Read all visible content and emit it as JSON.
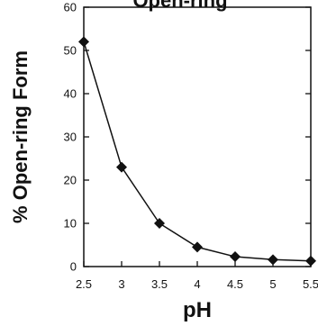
{
  "chart_data": {
    "type": "line",
    "title": "",
    "clipped_title_text": "Open-ring",
    "xlabel": "pH",
    "ylabel": "% Open-ring Form",
    "xlim": [
      2.5,
      5.5
    ],
    "ylim": [
      0,
      60
    ],
    "x_ticks": [
      2.5,
      3,
      3.5,
      4,
      4.5,
      5,
      5.5
    ],
    "x_tick_labels": [
      "2.5",
      "3",
      "3.5",
      "4",
      "4.5",
      "5",
      "5.5"
    ],
    "y_ticks": [
      0,
      10,
      20,
      30,
      40,
      50,
      60
    ],
    "y_tick_labels": [
      "0",
      "10",
      "20",
      "30",
      "40",
      "50",
      "60"
    ],
    "grid": false,
    "marker": "diamond",
    "series": [
      {
        "x": [
          2.5,
          3,
          3.5,
          4,
          4.5,
          5,
          5.5
        ],
        "y": [
          52,
          23,
          10,
          4.5,
          2.3,
          1.6,
          1.3
        ]
      }
    ]
  }
}
